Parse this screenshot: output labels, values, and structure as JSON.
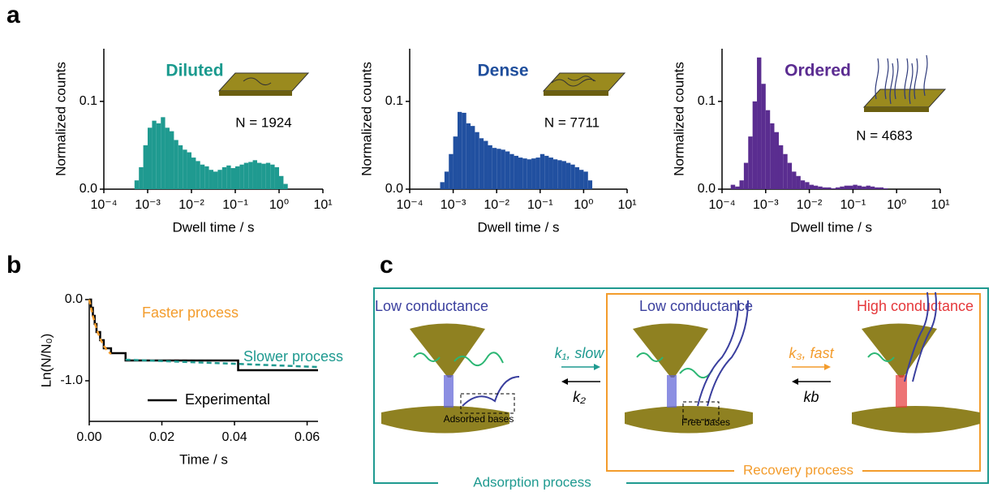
{
  "panel_labels": [
    "a",
    "b",
    "c"
  ],
  "chart_data": [
    {
      "type": "histogram",
      "title": "Diluted",
      "title_color": "#1a9a8e",
      "annotation": "N = 1924",
      "color": "#1f9a90",
      "xlabel": "Dwell time / s",
      "ylabel": "Normalized counts",
      "log_x": true,
      "xlim": [
        0.0001,
        10
      ],
      "xticks": [
        {
          "value": 0.0001,
          "label": "10⁻⁴"
        },
        {
          "value": 0.001,
          "label": "10⁻³"
        },
        {
          "value": 0.01,
          "label": "10⁻²"
        },
        {
          "value": 0.1,
          "label": "10⁻¹"
        },
        {
          "value": 1,
          "label": "10⁰"
        },
        {
          "value": 10,
          "label": "10¹"
        }
      ],
      "ylim": [
        0,
        0.16
      ],
      "yticks": [
        {
          "value": 0,
          "label": "0.0"
        },
        0.1
      ],
      "bins": [
        0.000501,
        0.000631,
        0.000794,
        0.001,
        0.00126,
        0.00158,
        0.002,
        0.00251,
        0.00316,
        0.00398,
        0.00501,
        0.00631,
        0.00794,
        0.01,
        0.0126,
        0.0158,
        0.02,
        0.0251,
        0.0316,
        0.0398,
        0.0501,
        0.0631,
        0.0794,
        0.1,
        0.126,
        0.158,
        0.2,
        0.251,
        0.316,
        0.398,
        0.501,
        0.631,
        0.794,
        1,
        1.26,
        1.58
      ],
      "values": [
        0.01,
        0.025,
        0.05,
        0.07,
        0.078,
        0.075,
        0.082,
        0.07,
        0.066,
        0.056,
        0.05,
        0.045,
        0.042,
        0.036,
        0.032,
        0.028,
        0.026,
        0.022,
        0.02,
        0.022,
        0.025,
        0.027,
        0.024,
        0.026,
        0.028,
        0.03,
        0.031,
        0.033,
        0.03,
        0.029,
        0.03,
        0.028,
        0.025,
        0.015,
        0.006
      ]
    },
    {
      "type": "histogram",
      "title": "Dense",
      "title_color": "#1f4e9c",
      "annotation": "N = 7711",
      "color": "#2150a0",
      "xlabel": "Dwell time / s",
      "ylabel": "Normalized counts",
      "log_x": true,
      "xlim": [
        0.0001,
        10
      ],
      "xticks": [
        {
          "value": 0.0001,
          "label": "10⁻⁴"
        },
        {
          "value": 0.001,
          "label": "10⁻³"
        },
        {
          "value": 0.01,
          "label": "10⁻²"
        },
        {
          "value": 0.1,
          "label": "10⁻¹"
        },
        {
          "value": 1,
          "label": "10⁰"
        },
        {
          "value": 10,
          "label": "10¹"
        }
      ],
      "ylim": [
        0,
        0.16
      ],
      "yticks": [
        {
          "value": 0,
          "label": "0.0"
        },
        0.1
      ],
      "bins": [
        0.000501,
        0.000631,
        0.000794,
        0.001,
        0.00126,
        0.00158,
        0.002,
        0.00251,
        0.00316,
        0.00398,
        0.00501,
        0.00631,
        0.00794,
        0.01,
        0.0126,
        0.0158,
        0.02,
        0.0251,
        0.0316,
        0.0398,
        0.0501,
        0.0631,
        0.0794,
        0.1,
        0.126,
        0.158,
        0.2,
        0.251,
        0.316,
        0.398,
        0.501,
        0.631,
        0.794,
        1,
        1.26,
        1.58
      ],
      "values": [
        0.008,
        0.02,
        0.04,
        0.06,
        0.088,
        0.087,
        0.075,
        0.072,
        0.065,
        0.058,
        0.055,
        0.05,
        0.047,
        0.046,
        0.045,
        0.043,
        0.04,
        0.038,
        0.036,
        0.035,
        0.034,
        0.035,
        0.036,
        0.04,
        0.038,
        0.036,
        0.034,
        0.033,
        0.032,
        0.03,
        0.028,
        0.025,
        0.022,
        0.02,
        0.01
      ]
    },
    {
      "type": "histogram",
      "title": "Ordered",
      "title_color": "#5b2c91",
      "annotation": "N = 4683",
      "color": "#5a2d90",
      "xlabel": "Dwell time / s",
      "ylabel": "Normalized counts",
      "log_x": true,
      "xlim": [
        0.0001,
        10
      ],
      "xticks": [
        {
          "value": 0.0001,
          "label": "10⁻⁴"
        },
        {
          "value": 0.001,
          "label": "10⁻³"
        },
        {
          "value": 0.01,
          "label": "10⁻²"
        },
        {
          "value": 0.1,
          "label": "10⁻¹"
        },
        {
          "value": 1,
          "label": "10⁰"
        },
        {
          "value": 10,
          "label": "10¹"
        }
      ],
      "ylim": [
        0,
        0.16
      ],
      "yticks": [
        {
          "value": 0,
          "label": "0.0"
        },
        0.1
      ],
      "bins": [
        0.000158,
        0.0002,
        0.000251,
        0.000316,
        0.000398,
        0.000501,
        0.000631,
        0.000794,
        0.001,
        0.00126,
        0.00158,
        0.002,
        0.00251,
        0.00316,
        0.00398,
        0.00501,
        0.00631,
        0.00794,
        0.01,
        0.0126,
        0.0158,
        0.02,
        0.0251,
        0.0316,
        0.0398,
        0.0501,
        0.0631,
        0.0794,
        0.1,
        0.126,
        0.158,
        0.2,
        0.251,
        0.316,
        0.398,
        0.501,
        0.631
      ],
      "values": [
        0.005,
        0.003,
        0.01,
        0.03,
        0.06,
        0.1,
        0.15,
        0.12,
        0.09,
        0.075,
        0.065,
        0.05,
        0.04,
        0.03,
        0.02,
        0.015,
        0.01,
        0.008,
        0.005,
        0.004,
        0.003,
        0.002,
        0.002,
        0.001,
        0.002,
        0.003,
        0.004,
        0.004,
        0.005,
        0.004,
        0.003,
        0.004,
        0.003,
        0.002,
        0.002,
        0.001
      ]
    },
    {
      "type": "line",
      "xlabel": "Time / s",
      "ylabel": "Ln(N/N₀)",
      "xlim": [
        0,
        0.063
      ],
      "xticks": [
        {
          "value": 0,
          "label": "0.00"
        },
        {
          "value": 0.02,
          "label": "0.02"
        },
        {
          "value": 0.04,
          "label": "0.04"
        },
        {
          "value": 0.06,
          "label": "0.06"
        }
      ],
      "ylim": [
        -1.5,
        0
      ],
      "yticks": [
        {
          "value": 0,
          "label": "0.0"
        },
        {
          "value": -1,
          "label": "-1.0"
        }
      ],
      "series": [
        {
          "name": "Experimental",
          "color": "#000000",
          "style": "solid",
          "step": true,
          "x": [
            0,
            0.0005,
            0.001,
            0.0015,
            0.002,
            0.003,
            0.004,
            0.006,
            0.01,
            0.041,
            0.063
          ],
          "values": [
            0,
            -0.1,
            -0.2,
            -0.3,
            -0.4,
            -0.5,
            -0.6,
            -0.66,
            -0.75,
            -0.87,
            -0.87
          ]
        },
        {
          "name": "Faster process",
          "color": "#f39c2c",
          "style": "dashed",
          "step": false,
          "x": [
            0,
            0.001,
            0.002,
            0.003,
            0.004,
            0.005,
            0.006
          ],
          "values": [
            0,
            -0.2,
            -0.36,
            -0.48,
            -0.57,
            -0.63,
            -0.67
          ]
        },
        {
          "name": "Slower process",
          "color": "#1f9a90",
          "style": "dashed",
          "step": false,
          "x": [
            0.01,
            0.063
          ],
          "values": [
            -0.74,
            -0.83
          ]
        }
      ],
      "legend_series": [
        0
      ]
    }
  ],
  "diagram": {
    "states": [
      "Low conductance",
      "Low conductance",
      "High conductance"
    ],
    "k1": "k₁, slow",
    "k2": "k₂",
    "k3": "k₃, fast",
    "kb": "kb",
    "adsorbed": "Adsorbed bases",
    "free": "Free bases",
    "recovery": "Recovery process",
    "adsorption": "Adsorption process"
  }
}
